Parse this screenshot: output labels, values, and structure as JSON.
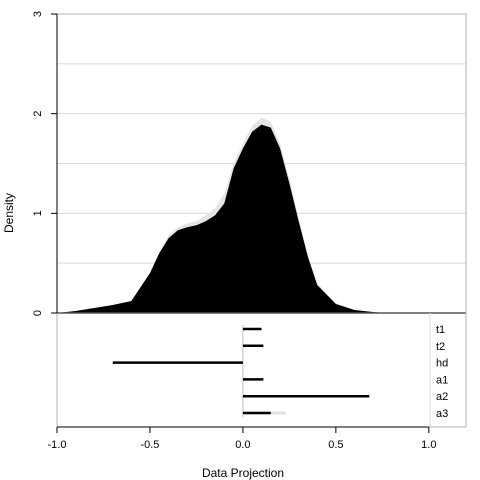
{
  "chart_data": {
    "type": "area",
    "xlabel": "Data Projection",
    "ylabel": "Density",
    "xlim": [
      -1.0,
      1.2
    ],
    "ylim": [
      0,
      3
    ],
    "x_ticks": [
      "-1.0",
      "-0.5",
      "0.0",
      "0.5",
      "1.0"
    ],
    "x_tick_values": [
      -1.0,
      -0.5,
      0.0,
      0.5,
      1.0
    ],
    "y_ticks": [
      "0",
      "1",
      "2",
      "3"
    ],
    "y_tick_values": [
      0,
      1,
      2,
      3
    ],
    "grid": true,
    "density_back": {
      "color": "#e5e5e5",
      "x": [
        -1.0,
        -0.9,
        -0.8,
        -0.7,
        -0.6,
        -0.5,
        -0.45,
        -0.4,
        -0.35,
        -0.3,
        -0.25,
        -0.2,
        -0.15,
        -0.1,
        -0.05,
        0.0,
        0.05,
        0.1,
        0.15,
        0.2,
        0.25,
        0.3,
        0.35,
        0.4,
        0.5,
        0.6,
        0.7,
        0.76
      ],
      "y": [
        0,
        0.02,
        0.05,
        0.08,
        0.12,
        0.4,
        0.6,
        0.78,
        0.86,
        0.9,
        0.92,
        0.98,
        1.05,
        1.2,
        1.5,
        1.7,
        1.88,
        1.96,
        1.92,
        1.7,
        1.35,
        0.95,
        0.58,
        0.3,
        0.1,
        0.03,
        0.01,
        0
      ]
    },
    "density_front": {
      "color": "#000000",
      "x": [
        -1.0,
        -0.9,
        -0.8,
        -0.7,
        -0.6,
        -0.5,
        -0.45,
        -0.4,
        -0.35,
        -0.3,
        -0.25,
        -0.2,
        -0.15,
        -0.1,
        -0.05,
        0.0,
        0.05,
        0.1,
        0.15,
        0.2,
        0.25,
        0.3,
        0.35,
        0.4,
        0.5,
        0.6,
        0.7,
        0.76
      ],
      "y": [
        0,
        0.02,
        0.05,
        0.08,
        0.12,
        0.4,
        0.6,
        0.75,
        0.83,
        0.86,
        0.88,
        0.92,
        0.98,
        1.1,
        1.45,
        1.65,
        1.82,
        1.89,
        1.86,
        1.65,
        1.3,
        0.92,
        0.56,
        0.28,
        0.09,
        0.03,
        0.01,
        0
      ]
    },
    "coefficients": [
      {
        "name": "t1",
        "value": 0.1,
        "ci_upper": 0.1
      },
      {
        "name": "t2",
        "value": 0.11,
        "ci_upper": 0.11
      },
      {
        "name": "hd",
        "value": -0.7,
        "ci_upper": -0.7
      },
      {
        "name": "a1",
        "value": 0.11,
        "ci_upper": 0.11
      },
      {
        "name": "a2",
        "value": 0.68,
        "ci_upper": 0.68
      },
      {
        "name": "a3",
        "value": 0.15,
        "ci_upper": 0.23
      }
    ]
  }
}
